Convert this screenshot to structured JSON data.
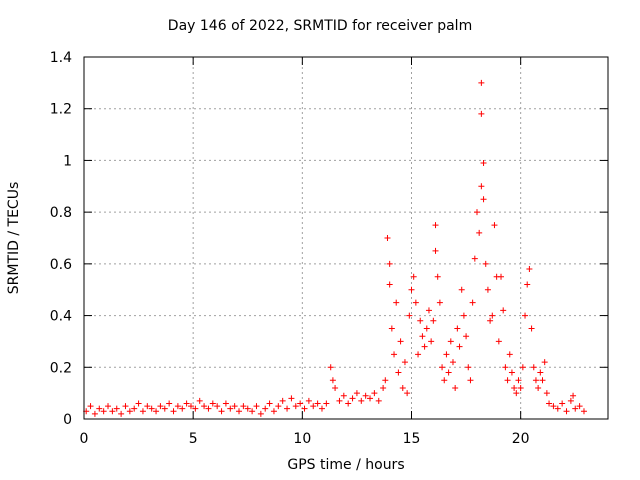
{
  "chart_data": {
    "type": "scatter",
    "title": "Day 146 of 2022, SRMTID for receiver palm",
    "xlabel": "GPS time / hours",
    "ylabel": "SRMTID / TECUs",
    "xlim": [
      0,
      24
    ],
    "ylim": [
      0,
      1.4
    ],
    "xticks": [
      0,
      5,
      10,
      15,
      20
    ],
    "xtick_labels": [
      "0",
      "5",
      "10",
      "15",
      "20"
    ],
    "yticks": [
      0,
      0.2,
      0.4,
      0.6,
      0.8,
      1,
      1.2,
      1.4
    ],
    "ytick_labels": [
      "0",
      "0.2",
      "0.4",
      "0.6",
      "0.8",
      "1",
      "1.2",
      "1.4"
    ],
    "grid": true,
    "marker": "+",
    "series": [
      {
        "name": "SRMTID",
        "color": "#ff0000",
        "points": [
          [
            0.1,
            0.03
          ],
          [
            0.3,
            0.05
          ],
          [
            0.5,
            0.02
          ],
          [
            0.7,
            0.04
          ],
          [
            0.9,
            0.03
          ],
          [
            1.1,
            0.05
          ],
          [
            1.3,
            0.03
          ],
          [
            1.5,
            0.04
          ],
          [
            1.7,
            0.02
          ],
          [
            1.9,
            0.05
          ],
          [
            2.1,
            0.03
          ],
          [
            2.3,
            0.04
          ],
          [
            2.5,
            0.06
          ],
          [
            2.7,
            0.03
          ],
          [
            2.9,
            0.05
          ],
          [
            3.1,
            0.04
          ],
          [
            3.3,
            0.03
          ],
          [
            3.5,
            0.05
          ],
          [
            3.7,
            0.04
          ],
          [
            3.9,
            0.06
          ],
          [
            4.1,
            0.03
          ],
          [
            4.3,
            0.05
          ],
          [
            4.5,
            0.04
          ],
          [
            4.7,
            0.06
          ],
          [
            4.9,
            0.05
          ],
          [
            5.1,
            0.04
          ],
          [
            5.3,
            0.07
          ],
          [
            5.5,
            0.05
          ],
          [
            5.7,
            0.04
          ],
          [
            5.9,
            0.06
          ],
          [
            6.1,
            0.05
          ],
          [
            6.3,
            0.03
          ],
          [
            6.5,
            0.06
          ],
          [
            6.7,
            0.04
          ],
          [
            6.9,
            0.05
          ],
          [
            7.1,
            0.03
          ],
          [
            7.3,
            0.05
          ],
          [
            7.5,
            0.04
          ],
          [
            7.7,
            0.03
          ],
          [
            7.9,
            0.05
          ],
          [
            8.1,
            0.02
          ],
          [
            8.3,
            0.04
          ],
          [
            8.5,
            0.06
          ],
          [
            8.7,
            0.03
          ],
          [
            8.9,
            0.05
          ],
          [
            9.1,
            0.07
          ],
          [
            9.3,
            0.04
          ],
          [
            9.5,
            0.08
          ],
          [
            9.7,
            0.05
          ],
          [
            9.9,
            0.06
          ],
          [
            10.1,
            0.04
          ],
          [
            10.3,
            0.07
          ],
          [
            10.5,
            0.05
          ],
          [
            10.7,
            0.06
          ],
          [
            10.9,
            0.04
          ],
          [
            11.1,
            0.06
          ],
          [
            11.3,
            0.2
          ],
          [
            11.4,
            0.15
          ],
          [
            11.5,
            0.12
          ],
          [
            11.7,
            0.07
          ],
          [
            11.9,
            0.09
          ],
          [
            12.1,
            0.06
          ],
          [
            12.3,
            0.08
          ],
          [
            12.5,
            0.1
          ],
          [
            12.7,
            0.07
          ],
          [
            12.9,
            0.09
          ],
          [
            13.1,
            0.08
          ],
          [
            13.3,
            0.1
          ],
          [
            13.5,
            0.07
          ],
          [
            13.7,
            0.12
          ],
          [
            13.8,
            0.15
          ],
          [
            13.9,
            0.7
          ],
          [
            14.0,
            0.6
          ],
          [
            14.0,
            0.52
          ],
          [
            14.1,
            0.35
          ],
          [
            14.2,
            0.25
          ],
          [
            14.3,
            0.45
          ],
          [
            14.4,
            0.18
          ],
          [
            14.5,
            0.3
          ],
          [
            14.6,
            0.12
          ],
          [
            14.7,
            0.22
          ],
          [
            14.8,
            0.1
          ],
          [
            14.9,
            0.4
          ],
          [
            15.0,
            0.5
          ],
          [
            15.1,
            0.55
          ],
          [
            15.2,
            0.45
          ],
          [
            15.3,
            0.25
          ],
          [
            15.4,
            0.38
          ],
          [
            15.5,
            0.32
          ],
          [
            15.6,
            0.28
          ],
          [
            15.7,
            0.35
          ],
          [
            15.8,
            0.42
          ],
          [
            15.9,
            0.3
          ],
          [
            16.0,
            0.38
          ],
          [
            16.1,
            0.75
          ],
          [
            16.1,
            0.65
          ],
          [
            16.2,
            0.55
          ],
          [
            16.3,
            0.45
          ],
          [
            16.4,
            0.2
          ],
          [
            16.5,
            0.15
          ],
          [
            16.6,
            0.25
          ],
          [
            16.7,
            0.18
          ],
          [
            16.8,
            0.3
          ],
          [
            16.9,
            0.22
          ],
          [
            17.0,
            0.12
          ],
          [
            17.1,
            0.35
          ],
          [
            17.2,
            0.28
          ],
          [
            17.3,
            0.5
          ],
          [
            17.4,
            0.4
          ],
          [
            17.5,
            0.32
          ],
          [
            17.6,
            0.2
          ],
          [
            17.7,
            0.15
          ],
          [
            17.8,
            0.45
          ],
          [
            17.9,
            0.62
          ],
          [
            18.0,
            0.8
          ],
          [
            18.1,
            0.72
          ],
          [
            18.2,
            0.9
          ],
          [
            18.2,
            1.18
          ],
          [
            18.2,
            1.3
          ],
          [
            18.3,
            0.99
          ],
          [
            18.3,
            0.85
          ],
          [
            18.4,
            0.6
          ],
          [
            18.5,
            0.5
          ],
          [
            18.6,
            0.38
          ],
          [
            18.7,
            0.4
          ],
          [
            18.8,
            0.75
          ],
          [
            18.9,
            0.55
          ],
          [
            19.0,
            0.3
          ],
          [
            19.1,
            0.55
          ],
          [
            19.2,
            0.42
          ],
          [
            19.3,
            0.2
          ],
          [
            19.4,
            0.15
          ],
          [
            19.5,
            0.25
          ],
          [
            19.6,
            0.18
          ],
          [
            19.7,
            0.12
          ],
          [
            19.8,
            0.1
          ],
          [
            19.9,
            0.15
          ],
          [
            20.0,
            0.12
          ],
          [
            20.1,
            0.2
          ],
          [
            20.2,
            0.4
          ],
          [
            20.3,
            0.52
          ],
          [
            20.4,
            0.58
          ],
          [
            20.5,
            0.35
          ],
          [
            20.6,
            0.2
          ],
          [
            20.7,
            0.15
          ],
          [
            20.8,
            0.12
          ],
          [
            20.9,
            0.18
          ],
          [
            21.0,
            0.15
          ],
          [
            21.1,
            0.22
          ],
          [
            21.2,
            0.1
          ],
          [
            21.3,
            0.06
          ],
          [
            21.5,
            0.05
          ],
          [
            21.7,
            0.04
          ],
          [
            21.9,
            0.06
          ],
          [
            22.1,
            0.03
          ],
          [
            22.3,
            0.07
          ],
          [
            22.4,
            0.09
          ],
          [
            22.5,
            0.04
          ],
          [
            22.7,
            0.05
          ],
          [
            22.9,
            0.03
          ]
        ]
      }
    ]
  }
}
